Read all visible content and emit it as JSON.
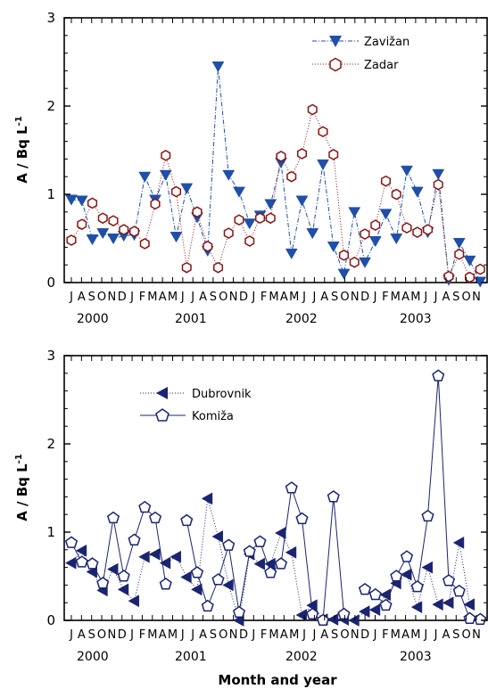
{
  "chart_data": [
    {
      "type": "line",
      "ylabel": "A / Bq L",
      "ylabel_superscript": "-1",
      "ylim": [
        0,
        3
      ],
      "yticks": [
        "0",
        "1",
        "2",
        "3"
      ],
      "month_labels": [
        "J",
        "A",
        "S",
        "O",
        "N",
        "D",
        "J",
        "F",
        "M",
        "A",
        "M",
        "J",
        "J",
        "A",
        "S",
        "O",
        "N",
        "D",
        "J",
        "F",
        "M",
        "A",
        "M",
        "J",
        "J",
        "A",
        "S",
        "O",
        "N",
        "D",
        "J",
        "F",
        "M",
        "A",
        "M",
        "J",
        "J",
        "A",
        "S",
        "O",
        "N",
        "D"
      ],
      "year_labels": [
        "2000",
        "2001",
        "2002",
        "2003"
      ],
      "legend_position": "top-right",
      "series": [
        {
          "name": "Zavižan",
          "marker": "triangle-down",
          "line_style": "dash-dot",
          "color": "#1f4fa8",
          "values": [
            0.94,
            0.93,
            0.49,
            0.56,
            0.5,
            0.53,
            0.54,
            1.2,
            0.94,
            1.22,
            0.52,
            1.07,
            0.74,
            0.36,
            2.45,
            1.22,
            1.03,
            0.67,
            0.76,
            0.89,
            1.36,
            0.33,
            0.93,
            0.56,
            1.34,
            0.41,
            0.1,
            0.8,
            0.23,
            0.47,
            0.78,
            0.5,
            1.27,
            1.03,
            0.57,
            1.23,
            0.03,
            0.45,
            0.25,
            0.01
          ]
        },
        {
          "name": "Zadar",
          "marker": "hexagon-open",
          "line_style": "dotted",
          "color": "#8a1414",
          "values": [
            0.48,
            0.66,
            0.9,
            0.73,
            0.7,
            0.6,
            0.58,
            0.44,
            0.89,
            1.44,
            1.03,
            0.17,
            0.8,
            0.41,
            0.17,
            0.56,
            0.71,
            0.47,
            0.73,
            0.73,
            1.43,
            1.2,
            1.46,
            1.96,
            1.71,
            1.45,
            0.31,
            0.23,
            0.55,
            0.65,
            1.15,
            1.0,
            0.62,
            0.57,
            0.6,
            1.11,
            0.07,
            0.32,
            0.06,
            0.15
          ]
        }
      ]
    },
    {
      "type": "line",
      "ylabel": "A / Bq L",
      "ylabel_superscript": "-1",
      "xlabel": "Month and year",
      "ylim": [
        0,
        3
      ],
      "yticks": [
        "0",
        "1",
        "2",
        "3"
      ],
      "month_labels": [
        "J",
        "A",
        "S",
        "O",
        "N",
        "D",
        "J",
        "F",
        "M",
        "A",
        "M",
        "J",
        "J",
        "A",
        "S",
        "O",
        "N",
        "D",
        "J",
        "F",
        "M",
        "A",
        "M",
        "J",
        "J",
        "A",
        "S",
        "O",
        "N",
        "D",
        "J",
        "F",
        "M",
        "A",
        "M",
        "J",
        "J",
        "A",
        "S",
        "O",
        "N",
        "D"
      ],
      "year_labels": [
        "2000",
        "2001",
        "2002",
        "2003"
      ],
      "legend_position": "top-left",
      "series": [
        {
          "name": "Dubrovnik",
          "marker": "triangle-left",
          "line_style": "dotted",
          "color": "#1a2470",
          "values": [
            0.65,
            0.79,
            0.55,
            0.34,
            0.58,
            0.35,
            0.22,
            0.72,
            0.75,
            0.65,
            0.72,
            0.49,
            0.35,
            1.38,
            0.95,
            0.4,
            0.0,
            0.75,
            0.64,
            0.64,
            0.99,
            0.77,
            0.06,
            0.17,
            0.01,
            0.01,
            0.01,
            0.0,
            0.1,
            0.12,
            0.29,
            0.42,
            0.52,
            0.15,
            0.6,
            0.18,
            0.2,
            0.88,
            0.18
          ]
        },
        {
          "name": "Komiža",
          "marker": "pentagon-open",
          "line_style": "solid",
          "color": "#1a2470",
          "values": [
            0.88,
            0.66,
            0.64,
            0.42,
            1.16,
            0.5,
            0.91,
            1.28,
            1.16,
            0.41,
            null,
            1.13,
            0.54,
            0.16,
            0.46,
            0.85,
            0.09,
            0.78,
            0.89,
            0.54,
            0.64,
            1.5,
            1.15,
            0.07,
            0.0,
            1.4,
            0.07,
            null,
            0.35,
            0.29,
            0.17,
            0.5,
            0.72,
            0.38,
            1.18,
            2.77,
            0.45,
            0.33,
            0.02,
            0.01
          ]
        }
      ]
    }
  ]
}
